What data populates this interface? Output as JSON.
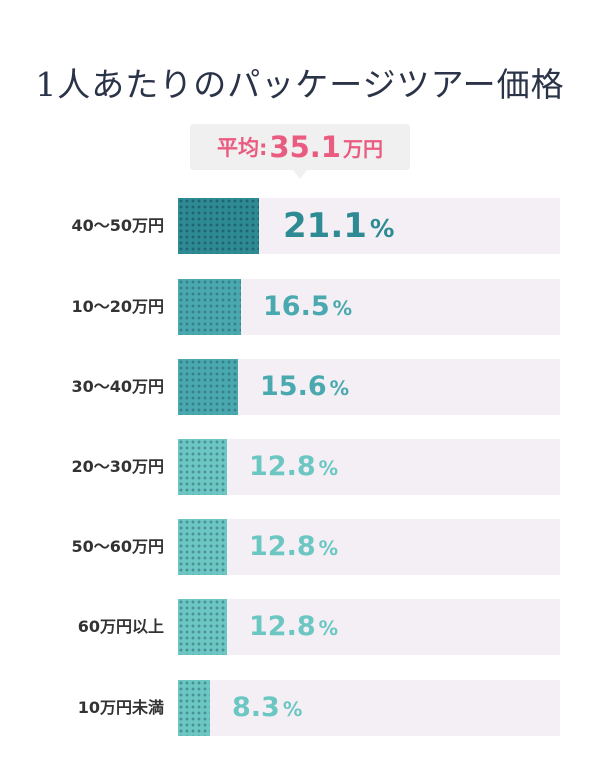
{
  "title": "1人あたりのパッケージツアー価格",
  "average": {
    "label": "平均:",
    "value": "35.1",
    "unit": "万円"
  },
  "colors": {
    "dark": "#2e8b94",
    "mid": "#4aa9af",
    "light": "#6cc7c3",
    "track": "#f3eff5",
    "accent": "#ea5b80"
  },
  "rows": [
    {
      "label": "40〜50万円",
      "value": "21.1",
      "pct": "%"
    },
    {
      "label": "10〜20万円",
      "value": "16.5",
      "pct": "%"
    },
    {
      "label": "30〜40万円",
      "value": "15.6",
      "pct": "%"
    },
    {
      "label": "20〜30万円",
      "value": "12.8",
      "pct": "%"
    },
    {
      "label": "50〜60万円",
      "value": "12.8",
      "pct": "%"
    },
    {
      "label": "60万円以上",
      "value": "12.8",
      "pct": "%"
    },
    {
      "label": "10万円未満",
      "value": "8.3",
      "pct": "%"
    }
  ],
  "chart_data": {
    "type": "bar",
    "orientation": "horizontal",
    "title": "1人あたりのパッケージツアー価格",
    "annotation": "平均:35.1万円",
    "categories": [
      "40〜50万円",
      "10〜20万円",
      "30〜40万円",
      "20〜30万円",
      "50〜60万円",
      "60万円以上",
      "10万円未満"
    ],
    "values": [
      21.1,
      16.5,
      15.6,
      12.8,
      12.8,
      12.8,
      8.3
    ],
    "unit": "%",
    "xlim": [
      0,
      100
    ],
    "grid": false,
    "legend": null
  }
}
